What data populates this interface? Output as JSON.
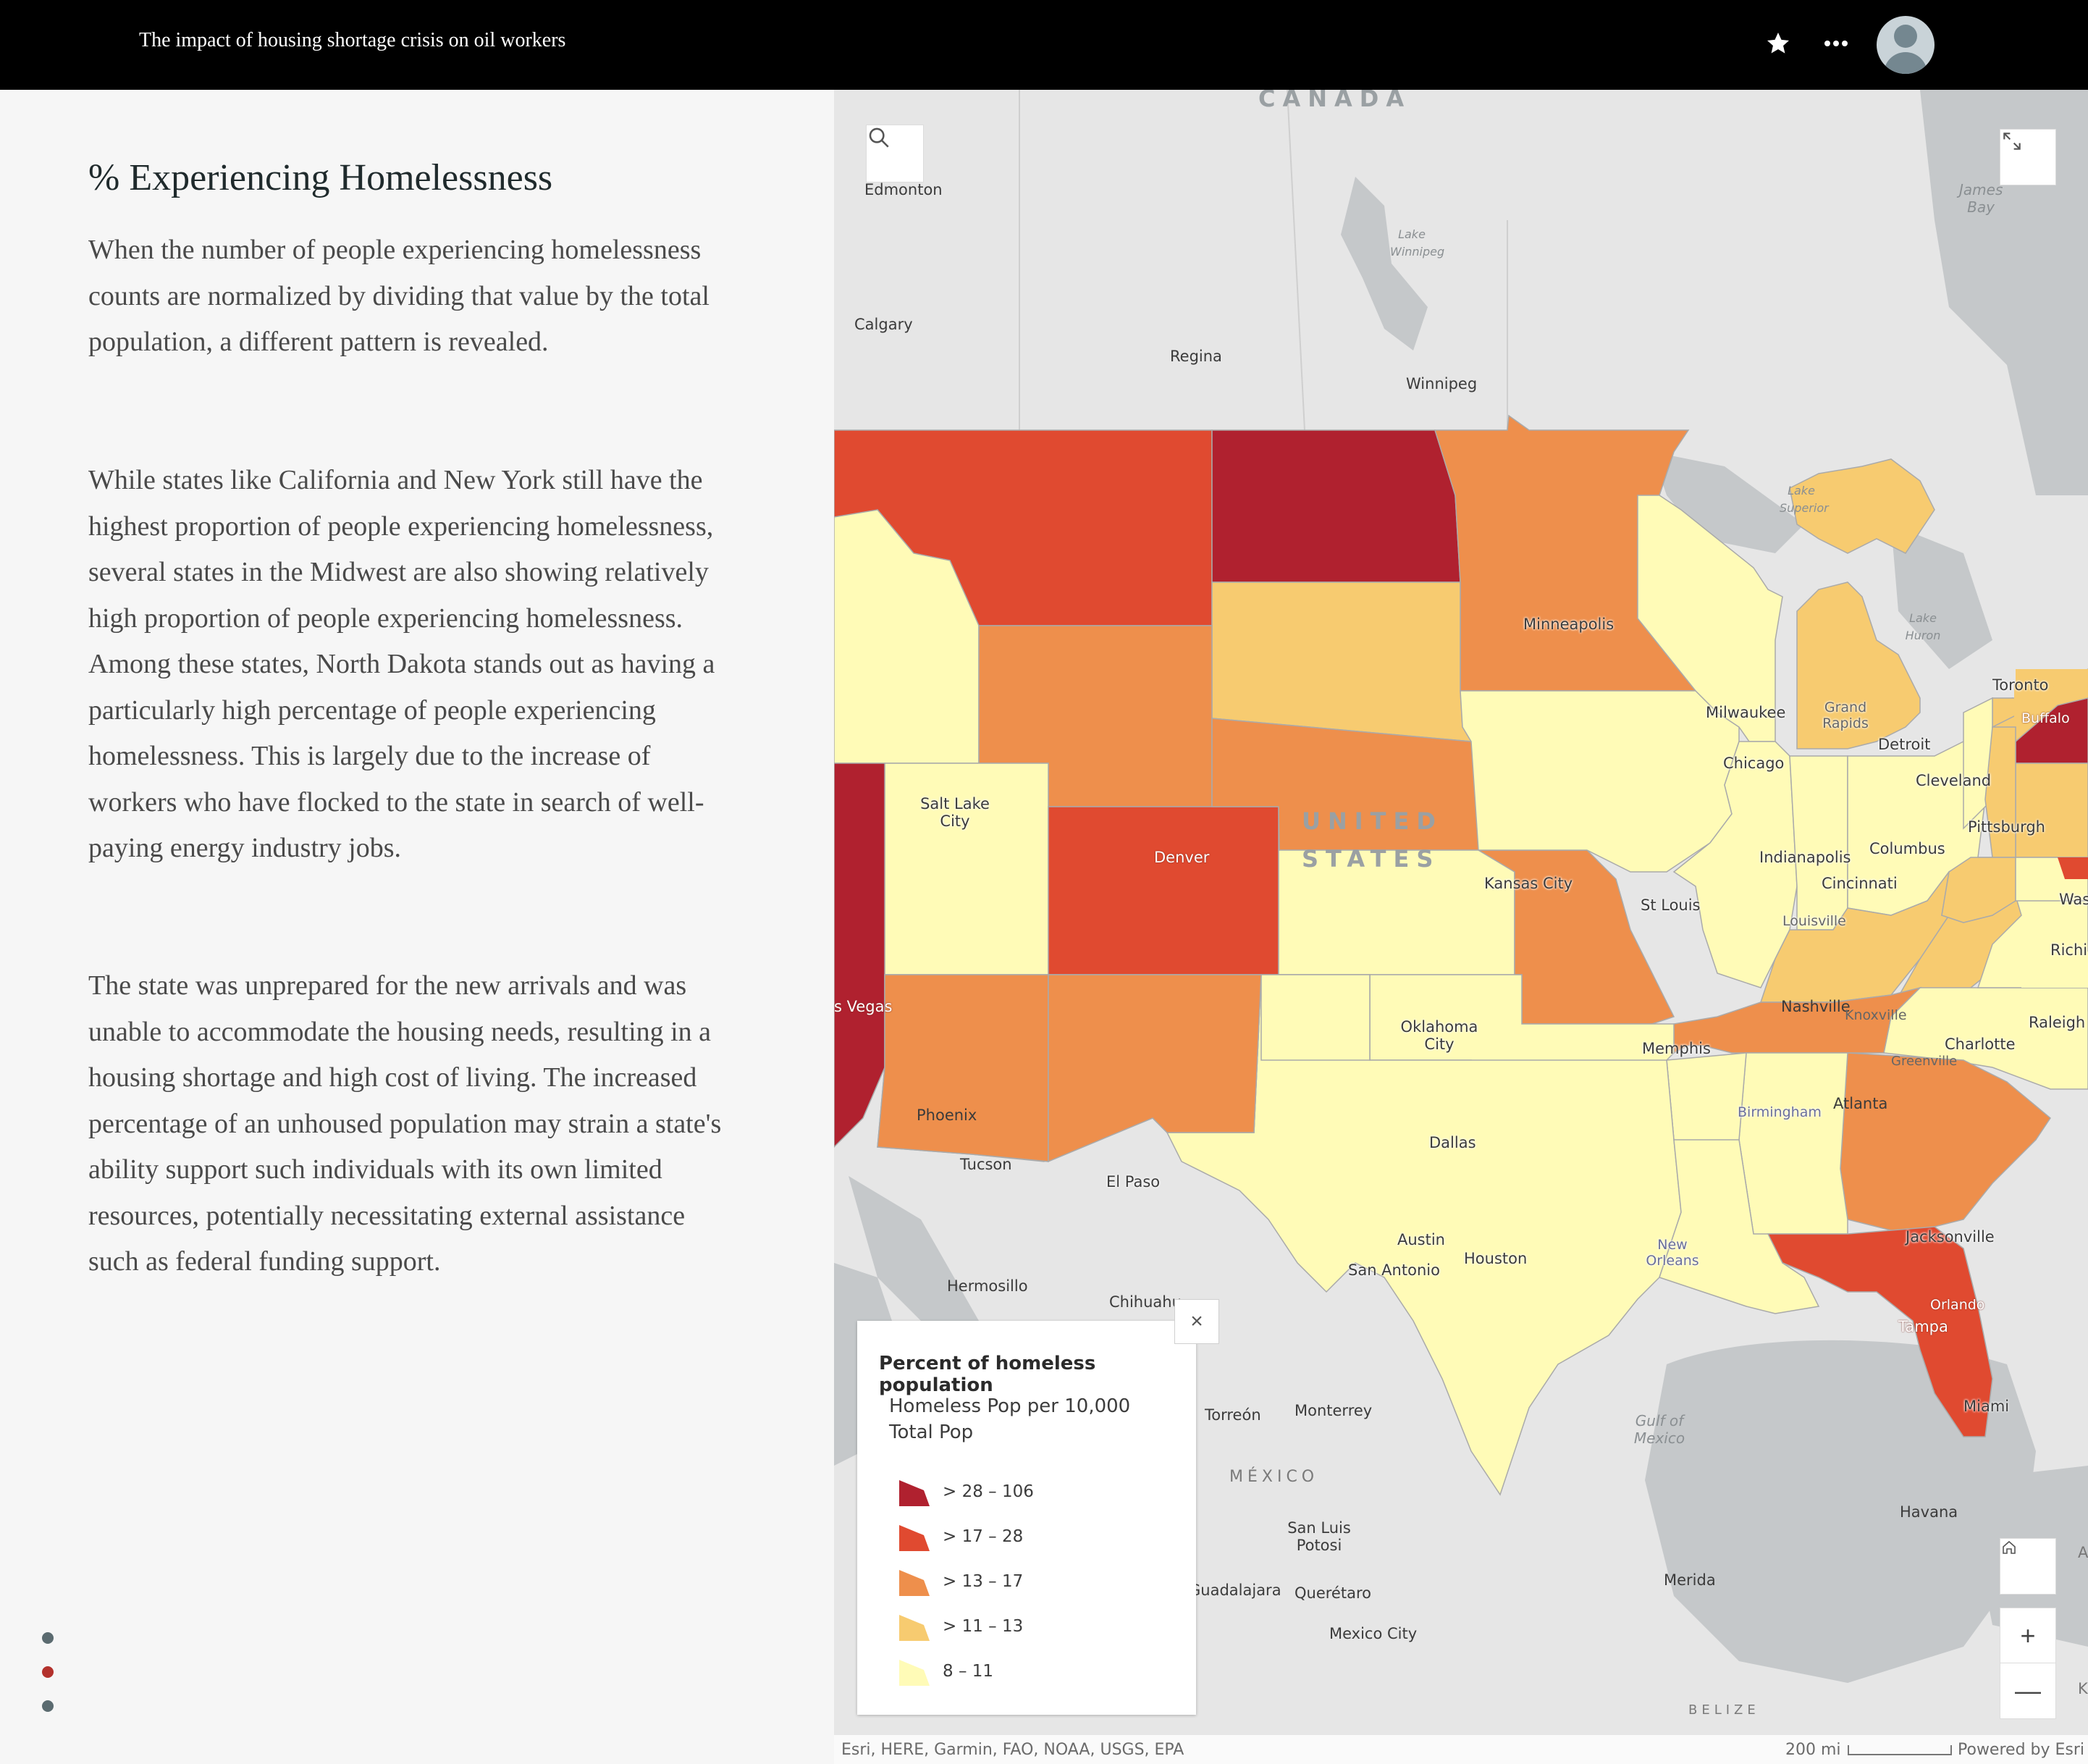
{
  "header": {
    "title": "The impact of housing shortage crisis on oil workers",
    "favorite_icon": "star-icon",
    "more_icon": "more-options-icon",
    "avatar_icon": "user-avatar-icon"
  },
  "narrative": {
    "heading": "% Experiencing Homelessness",
    "paragraphs": [
      "When the number of people experiencing homelessness counts are normalized by dividing that value by the total population, a different pattern is revealed.",
      "While states like California and New York still have the highest proportion of people experiencing homelessness, several states in the Midwest are also showing relatively high proportion of people experiencing homelessness. Among these states, North Dakota stands out as having a particularly high percentage of people experiencing homelessness. This is largely due to the increase of workers who have flocked to the state in search of well-paying energy industry jobs.",
      "The state was unprepared for the new arrivals and was unable to accommodate the housing needs, resulting in a housing shortage and high cost of living. The increased percentage of an unhoused population may strain a state's ability support such individuals with its own limited resources, potentially necessitating external assistance such as federal funding support."
    ],
    "nav_dots": 3,
    "active_dot": 2
  },
  "map": {
    "labels": {
      "canada": "CANADA",
      "united": "UNITED",
      "states": "STATES",
      "mexico": "MÉXICO",
      "belize": "BELIZE",
      "james_bay": "James Bay",
      "lake_winnipeg": "Lake Winnipeg",
      "lake_superior": "Lake Superior",
      "lake_huron": "Lake Huron",
      "gulf": "Gulf of Mexico",
      "edmonton": "Edmonton",
      "calgary": "Calgary",
      "regina": "Regina",
      "winnipeg": "Winnipeg",
      "toronto": "Toronto",
      "buffalo": "Buffalo",
      "minneapolis": "Minneapolis",
      "milwaukee": "Milwaukee",
      "grand_rapids": "Grand Rapids",
      "detroit": "Detroit",
      "chicago": "Chicago",
      "cleveland": "Cleveland",
      "pittsburgh": "Pittsburgh",
      "salt_lake": "Salt Lake City",
      "denver": "Denver",
      "kansas_city": "Kansas City",
      "st_louis": "St Louis",
      "indianapolis": "Indianapolis",
      "columbus": "Columbus",
      "cincinnati": "Cincinnati",
      "louisville": "Louisville",
      "las_vegas": "s Vegas",
      "oklahoma": "Oklahoma City",
      "nashville": "Nashville",
      "knoxville": "Knoxville",
      "memphis": "Memphis",
      "charlotte": "Charlotte",
      "greenville": "Greenville",
      "raleigh": "Raleigh",
      "richmond": "Richi",
      "washington": "Was",
      "phoenix": "Phoenix",
      "tucson": "Tucson",
      "el_paso": "El Paso",
      "dallas": "Dallas",
      "birmingham": "Birmingham",
      "atlanta": "Atlanta",
      "austin": "Austin",
      "san_antonio": "San Antonio",
      "houston": "Houston",
      "new_orleans": "New Orleans",
      "jacksonville": "Jacksonville",
      "orlando": "Orlando",
      "tampa": "Tampa",
      "miami": "Miami",
      "hermosillo": "Hermosillo",
      "chihuahua": "Chihuahu",
      "torreon": "Torreón",
      "monterrey": "Monterrey",
      "san_luis": "San Luis Potosi",
      "guadalajara": "Guadalajara",
      "queretaro": "Querétaro",
      "mexico_city": "Mexico City",
      "havana": "Havana",
      "merida": "Merida",
      "edge_a": "A",
      "edge_k": "K"
    },
    "colors": {
      "c1": "#b0212f",
      "c2": "#e04a30",
      "c3": "#ee8f4c",
      "c4": "#f7cb70",
      "c5": "#fffbb7",
      "land": "#e9e9e9",
      "water": "#c5c8ca"
    },
    "legend": {
      "title": "Percent of homeless population",
      "field": "Homeless Pop per 10,000 Total Pop",
      "classes": [
        {
          "label": "> 28 – 106",
          "color": "#b0212f"
        },
        {
          "label": "> 17 – 28",
          "color": "#e04a30"
        },
        {
          "label": "> 13 – 17",
          "color": "#ee8f4c"
        },
        {
          "label": "> 11 – 13",
          "color": "#f7cb70"
        },
        {
          "label": "8 – 11",
          "color": "#fffbb7"
        }
      ],
      "close_label": "×"
    },
    "attribution": "Esri, HERE, Garmin, FAO, NOAA, USGS, EPA",
    "scale_label": "200 mi",
    "powered_by": "Powered by Esri",
    "zoom_in": "+",
    "zoom_out": "—"
  }
}
